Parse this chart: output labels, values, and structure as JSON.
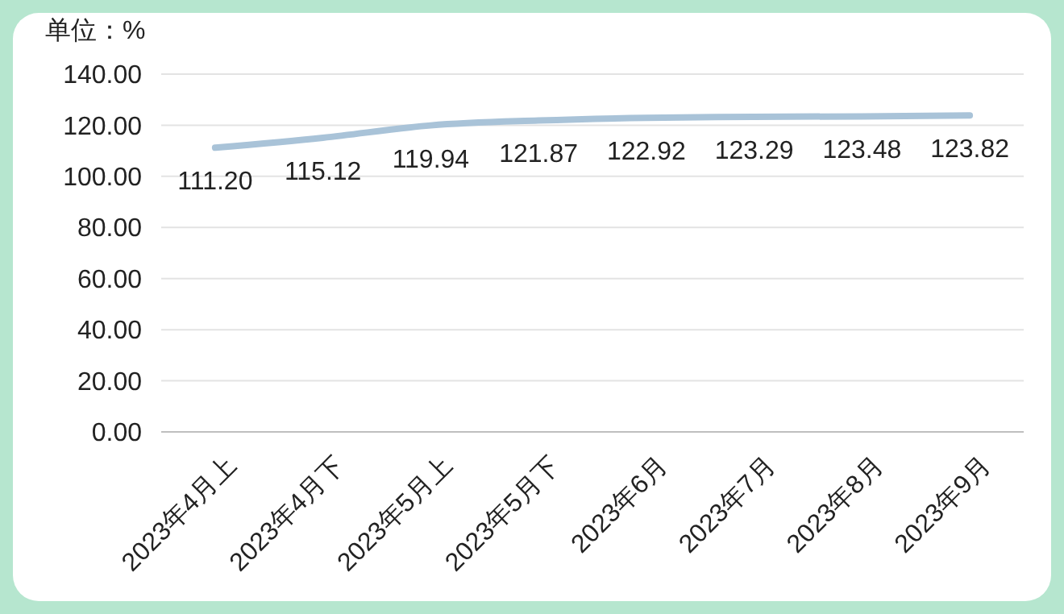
{
  "chart_data": {
    "type": "line",
    "ylabel": "单位：%",
    "categories": [
      "2023年4月上",
      "2023年4月下",
      "2023年5月上",
      "2023年5月下",
      "2023年6月",
      "2023年7月",
      "2023年8月",
      "2023年9月"
    ],
    "series": [
      {
        "color": "#a9c3d8",
        "values": [
          111.2,
          115.12,
          119.94,
          121.87,
          122.92,
          123.29,
          123.48,
          123.82
        ],
        "value_labels": [
          "111.20",
          "115.12",
          "119.94",
          "121.87",
          "122.92",
          "123.29",
          "123.48",
          "123.82"
        ]
      }
    ],
    "ylim": [
      0,
      140
    ],
    "yticks": [
      {
        "value": 0,
        "label": "0.00"
      },
      {
        "value": 20,
        "label": "20.00"
      },
      {
        "value": 40,
        "label": "40.00"
      },
      {
        "value": 60,
        "label": "60.00"
      },
      {
        "value": 80,
        "label": "80.00"
      },
      {
        "value": 100,
        "label": "100.00"
      },
      {
        "value": 120,
        "label": "120.00"
      },
      {
        "value": 140,
        "label": "140.00"
      }
    ],
    "grid": "y",
    "marker": "none",
    "line_style": "solid"
  }
}
